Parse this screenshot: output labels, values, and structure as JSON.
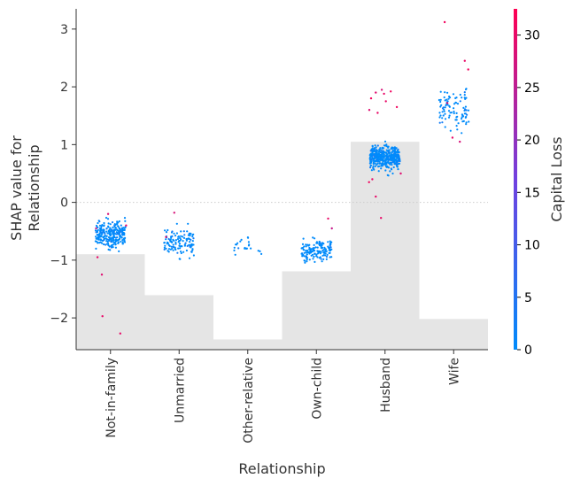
{
  "chart_data": {
    "type": "scatter",
    "subtype": "shap-dependence",
    "xlabel": "Relationship",
    "ylabel": "SHAP value for\nRelationship",
    "categories": [
      "Not-in-family",
      "Unmarried",
      "Other-relative",
      "Own-child",
      "Husband",
      "Wife"
    ],
    "ylim": [
      -2.55,
      3.35
    ],
    "yticks": [
      -2,
      -1,
      0,
      1,
      2,
      3
    ],
    "ytick_labels": [
      "−2",
      "−1",
      "0",
      "1",
      "2",
      "3"
    ],
    "zero_line": true,
    "grid": false,
    "histogram_note": "grey background bars show relative frequency of each category",
    "histogram_heights": [
      0.28,
      0.16,
      0.03,
      0.23,
      0.61,
      0.09
    ],
    "clusters": [
      {
        "category": "Not-in-family",
        "center": -0.55,
        "spread": 0.22,
        "count": 260
      },
      {
        "category": "Unmarried",
        "center": -0.72,
        "spread": 0.22,
        "count": 120
      },
      {
        "category": "Other-relative",
        "center": -0.75,
        "spread": 0.14,
        "count": 22
      },
      {
        "category": "Own-child",
        "center": -0.83,
        "spread": 0.16,
        "count": 150
      },
      {
        "category": "Husband",
        "center": 0.78,
        "spread": 0.18,
        "count": 400
      },
      {
        "category": "Wife",
        "center": 1.6,
        "spread": 0.32,
        "count": 95
      }
    ],
    "high_points": [
      {
        "category": "Not-in-family",
        "y": -0.4,
        "value": 30
      },
      {
        "category": "Not-in-family",
        "y": -0.45,
        "value": 25
      },
      {
        "category": "Not-in-family",
        "y": -0.2,
        "value": 28
      },
      {
        "category": "Not-in-family",
        "y": -0.95,
        "value": 30
      },
      {
        "category": "Not-in-family",
        "y": -1.25,
        "value": 29
      },
      {
        "category": "Not-in-family",
        "y": -1.97,
        "value": 30
      },
      {
        "category": "Not-in-family",
        "y": -2.27,
        "value": 30
      },
      {
        "category": "Unmarried",
        "y": -0.18,
        "value": 28
      },
      {
        "category": "Unmarried",
        "y": -0.6,
        "value": 30
      },
      {
        "category": "Own-child",
        "y": -0.28,
        "value": 30
      },
      {
        "category": "Own-child",
        "y": -0.45,
        "value": 26
      },
      {
        "category": "Husband",
        "y": 1.92,
        "value": 31
      },
      {
        "category": "Husband",
        "y": 1.88,
        "value": 30
      },
      {
        "category": "Husband",
        "y": 1.9,
        "value": 29
      },
      {
        "category": "Husband",
        "y": 1.8,
        "value": 31
      },
      {
        "category": "Husband",
        "y": 1.75,
        "value": 30
      },
      {
        "category": "Husband",
        "y": 1.6,
        "value": 29
      },
      {
        "category": "Husband",
        "y": 1.55,
        "value": 30
      },
      {
        "category": "Husband",
        "y": 1.65,
        "value": 31
      },
      {
        "category": "Husband",
        "y": 1.95,
        "value": 28
      },
      {
        "category": "Husband",
        "y": 0.4,
        "value": 30
      },
      {
        "category": "Husband",
        "y": 0.35,
        "value": 31
      },
      {
        "category": "Husband",
        "y": 0.5,
        "value": 29
      },
      {
        "category": "Husband",
        "y": 0.1,
        "value": 30
      },
      {
        "category": "Husband",
        "y": -0.27,
        "value": 30
      },
      {
        "category": "Wife",
        "y": 3.12,
        "value": 31
      },
      {
        "category": "Wife",
        "y": 2.45,
        "value": 30
      },
      {
        "category": "Wife",
        "y": 2.3,
        "value": 31
      },
      {
        "category": "Wife",
        "y": 1.72,
        "value": 29
      },
      {
        "category": "Wife",
        "y": 1.12,
        "value": 30
      },
      {
        "category": "Wife",
        "y": 1.05,
        "value": 28
      }
    ],
    "colorbar": {
      "label": "Capital Loss",
      "min": 0,
      "max": 32.5,
      "ticks": [
        0,
        5,
        10,
        15,
        20,
        25,
        30
      ],
      "colors": [
        "#008bfb",
        "#7040e0",
        "#ff0052"
      ]
    }
  }
}
